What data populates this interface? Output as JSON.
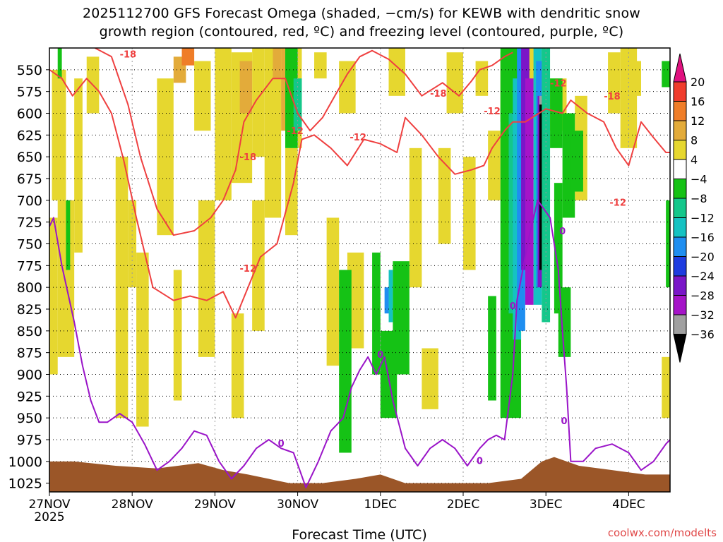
{
  "title_line1": "2025112700 GFS Forecast Omega (shaded, −cm/s) for KEWB with dendritic snow",
  "title_line2": "growth region (contoured, red, ºC) and freezing level (contoured, purple, ºC)",
  "watermark": "coolwx.com/modelts",
  "chart_data": {
    "type": "heatmap",
    "title": "2025112700 GFS Forecast Omega (shaded, −cm/s) for KEWB with dendritic snow growth region (contoured, red, ºC) and freezing level (contoured, purple, ºC)",
    "xlabel": "Forecast Time (UTC)",
    "ylabel": "",
    "x_ticks": [
      "27NOV",
      "28NOV",
      "29NOV",
      "30NOV",
      "1DEC",
      "2DEC",
      "3DEC",
      "4DEC"
    ],
    "x_tick_sublabel": "2025",
    "x_range_days": [
      0,
      7.5
    ],
    "y_ticks": [
      550,
      575,
      600,
      625,
      650,
      675,
      700,
      725,
      750,
      775,
      800,
      825,
      850,
      875,
      900,
      925,
      950,
      975,
      1000,
      1025
    ],
    "y_range_hpa": [
      525,
      1035
    ],
    "grid": "dotted",
    "colorbar_labels": [
      20,
      16,
      12,
      8,
      4,
      -4,
      -8,
      -12,
      -16,
      -20,
      -24,
      -28,
      -32,
      -36
    ],
    "colorbar_colors": [
      "#e0117f",
      "#f03c2c",
      "#ef7d28",
      "#e3ab3a",
      "#e6d72f",
      "#ffffff",
      "#15c215",
      "#14c78b",
      "#15c2c2",
      "#1f8ef0",
      "#1e3ce0",
      "#7a16c8",
      "#a514c8",
      "#a0a0a0",
      "#000000"
    ],
    "colors": {
      "dgz_contour": "#ef4040",
      "freezing_contour": "#9a14c8",
      "terrain": "#9b5628"
    },
    "contour_labels_dgz": [
      "-18",
      "-18",
      "-18",
      "-18",
      "-12",
      "-12",
      "-12",
      "-12",
      "-12",
      "-12"
    ],
    "contour_labels_freezing": [
      "0",
      "0",
      "0",
      "0",
      "0",
      "0"
    ],
    "dgz_minus12": [
      [
        0,
        550
      ],
      [
        0.15,
        560
      ],
      [
        0.28,
        580
      ],
      [
        0.45,
        560
      ],
      [
        0.6,
        575
      ],
      [
        0.75,
        600
      ],
      [
        0.9,
        655
      ],
      [
        1.05,
        720
      ],
      [
        1.25,
        800
      ],
      [
        1.5,
        815
      ],
      [
        1.7,
        810
      ],
      [
        1.9,
        815
      ],
      [
        2.1,
        805
      ],
      [
        2.25,
        835
      ],
      [
        2.4,
        800
      ],
      [
        2.55,
        765
      ],
      [
        2.75,
        750
      ],
      [
        2.95,
        680
      ],
      [
        3.05,
        630
      ],
      [
        3.2,
        625
      ],
      [
        3.4,
        640
      ],
      [
        3.6,
        660
      ],
      [
        3.8,
        630
      ],
      [
        4.0,
        635
      ],
      [
        4.2,
        645
      ],
      [
        4.3,
        605
      ],
      [
        4.5,
        625
      ],
      [
        4.7,
        650
      ],
      [
        4.9,
        670
      ],
      [
        5.1,
        665
      ],
      [
        5.25,
        660
      ],
      [
        5.35,
        640
      ],
      [
        5.5,
        620
      ],
      [
        5.6,
        610
      ],
      [
        5.75,
        610
      ],
      [
        6.0,
        595
      ],
      [
        6.2,
        600
      ],
      [
        6.3,
        585
      ],
      [
        6.5,
        600
      ],
      [
        6.7,
        610
      ],
      [
        6.85,
        640
      ],
      [
        7.0,
        660
      ],
      [
        7.15,
        610
      ],
      [
        7.3,
        628
      ],
      [
        7.45,
        645
      ],
      [
        7.5,
        645
      ]
    ],
    "dgz_minus18": [
      [
        0.55,
        525
      ],
      [
        0.75,
        535
      ],
      [
        0.95,
        590
      ],
      [
        1.1,
        650
      ],
      [
        1.3,
        710
      ],
      [
        1.5,
        740
      ],
      [
        1.75,
        735
      ],
      [
        1.95,
        720
      ],
      [
        2.1,
        700
      ],
      [
        2.25,
        665
      ],
      [
        2.35,
        610
      ],
      [
        2.5,
        585
      ],
      [
        2.7,
        560
      ],
      [
        2.85,
        560
      ],
      [
        3.0,
        600
      ],
      [
        3.15,
        620
      ],
      [
        3.3,
        605
      ],
      [
        3.45,
        580
      ],
      [
        3.6,
        555
      ],
      [
        3.75,
        535
      ],
      [
        3.9,
        528
      ],
      [
        4.1,
        538
      ],
      [
        4.3,
        555
      ],
      [
        4.5,
        580
      ],
      [
        4.75,
        565
      ],
      [
        4.95,
        580
      ],
      [
        5.1,
        563
      ],
      [
        5.2,
        550
      ],
      [
        5.35,
        545
      ],
      [
        5.5,
        535
      ],
      [
        5.6,
        530
      ]
    ],
    "freezing_0": [
      [
        0,
        730
      ],
      [
        0.05,
        720
      ],
      [
        0.15,
        775
      ],
      [
        0.3,
        840
      ],
      [
        0.4,
        890
      ],
      [
        0.5,
        930
      ],
      [
        0.6,
        955
      ],
      [
        0.7,
        955
      ],
      [
        0.85,
        945
      ],
      [
        1.0,
        955
      ],
      [
        1.15,
        980
      ],
      [
        1.3,
        1010
      ],
      [
        1.45,
        1000
      ],
      [
        1.6,
        985
      ],
      [
        1.75,
        965
      ],
      [
        1.9,
        970
      ],
      [
        2.05,
        1000
      ],
      [
        2.2,
        1020
      ],
      [
        2.35,
        1005
      ],
      [
        2.5,
        985
      ],
      [
        2.65,
        975
      ],
      [
        2.8,
        985
      ],
      [
        2.95,
        990
      ],
      [
        3.1,
        1030
      ],
      [
        3.25,
        1000
      ],
      [
        3.4,
        965
      ],
      [
        3.55,
        950
      ],
      [
        3.65,
        915
      ],
      [
        3.75,
        895
      ],
      [
        3.85,
        880
      ],
      [
        3.95,
        900
      ],
      [
        4.05,
        880
      ],
      [
        4.15,
        930
      ],
      [
        4.3,
        985
      ],
      [
        4.45,
        1005
      ],
      [
        4.6,
        985
      ],
      [
        4.75,
        975
      ],
      [
        4.9,
        985
      ],
      [
        5.05,
        1005
      ],
      [
        5.2,
        985
      ],
      [
        5.3,
        975
      ],
      [
        5.4,
        970
      ],
      [
        5.5,
        975
      ],
      [
        5.6,
        900
      ],
      [
        5.65,
        815
      ],
      [
        5.8,
        740
      ],
      [
        5.9,
        700
      ],
      [
        6.05,
        720
      ],
      [
        6.15,
        780
      ],
      [
        6.2,
        850
      ],
      [
        6.25,
        915
      ],
      [
        6.3,
        1000
      ],
      [
        6.45,
        1000
      ],
      [
        6.6,
        985
      ],
      [
        6.8,
        980
      ],
      [
        7.0,
        990
      ],
      [
        7.15,
        1010
      ],
      [
        7.3,
        1000
      ],
      [
        7.45,
        980
      ],
      [
        7.5,
        975
      ]
    ],
    "terrain_top": [
      [
        0,
        1000
      ],
      [
        0.3,
        1000
      ],
      [
        0.8,
        1005
      ],
      [
        1.3,
        1008
      ],
      [
        1.8,
        1002
      ],
      [
        2.1,
        1010
      ],
      [
        2.4,
        1015
      ],
      [
        2.9,
        1025
      ],
      [
        3.3,
        1025
      ],
      [
        3.7,
        1020
      ],
      [
        4.0,
        1015
      ],
      [
        4.3,
        1025
      ],
      [
        4.8,
        1025
      ],
      [
        5.3,
        1025
      ],
      [
        5.7,
        1020
      ],
      [
        5.95,
        1000
      ],
      [
        6.1,
        995
      ],
      [
        6.4,
        1005
      ],
      [
        6.8,
        1010
      ],
      [
        7.2,
        1015
      ],
      [
        7.5,
        1015
      ]
    ],
    "omega_cells": [
      {
        "t0": 0.03,
        "t1": 0.2,
        "p0": 550,
        "p1": 700,
        "v": 6
      },
      {
        "t0": 0.0,
        "t1": 0.1,
        "p0": 720,
        "p1": 900,
        "v": 6
      },
      {
        "t0": 0.1,
        "t1": 0.3,
        "p0": 700,
        "p1": 880,
        "v": 6
      },
      {
        "t0": 0.3,
        "t1": 0.4,
        "p0": 560,
        "p1": 760,
        "v": 6
      },
      {
        "t0": 0.45,
        "t1": 0.6,
        "p0": 535,
        "p1": 600,
        "v": 6
      },
      {
        "t0": 0.8,
        "t1": 0.95,
        "p0": 650,
        "p1": 950,
        "v": 6
      },
      {
        "t0": 0.95,
        "t1": 1.05,
        "p0": 700,
        "p1": 800,
        "v": 6
      },
      {
        "t0": 1.05,
        "t1": 1.2,
        "p0": 760,
        "p1": 960,
        "v": 6
      },
      {
        "t0": 1.3,
        "t1": 1.5,
        "p0": 560,
        "p1": 740,
        "v": 6
      },
      {
        "t0": 1.5,
        "t1": 1.6,
        "p0": 780,
        "p1": 930,
        "v": 6
      },
      {
        "t0": 1.75,
        "t1": 1.95,
        "p0": 540,
        "p1": 620,
        "v": 6
      },
      {
        "t0": 1.8,
        "t1": 2.0,
        "p0": 700,
        "p1": 880,
        "v": 6
      },
      {
        "t0": 2.0,
        "t1": 2.2,
        "p0": 525,
        "p1": 700,
        "v": 6
      },
      {
        "t0": 2.2,
        "t1": 2.45,
        "p0": 530,
        "p1": 680,
        "v": 6
      },
      {
        "t0": 2.3,
        "t1": 2.45,
        "p0": 540,
        "p1": 600,
        "v": 10
      },
      {
        "t0": 2.45,
        "t1": 2.6,
        "p0": 525,
        "p1": 650,
        "v": 6
      },
      {
        "t0": 2.2,
        "t1": 2.35,
        "p0": 830,
        "p1": 950,
        "v": 6
      },
      {
        "t0": 2.45,
        "t1": 2.6,
        "p0": 700,
        "p1": 850,
        "v": 6
      },
      {
        "t0": 2.6,
        "t1": 2.8,
        "p0": 525,
        "p1": 720,
        "v": 6
      },
      {
        "t0": 2.7,
        "t1": 2.8,
        "p0": 525,
        "p1": 560,
        "v": 10
      },
      {
        "t0": 2.8,
        "t1": 3.0,
        "p0": 525,
        "p1": 600,
        "v": 6
      },
      {
        "t0": 2.8,
        "t1": 2.9,
        "p0": 525,
        "p1": 620,
        "v": 10
      },
      {
        "t0": 2.9,
        "t1": 3.05,
        "p0": 525,
        "p1": 640,
        "v": 6
      },
      {
        "t0": 2.85,
        "t1": 3.0,
        "p0": 640,
        "p1": 740,
        "v": 6
      },
      {
        "t0": 3.2,
        "t1": 3.35,
        "p0": 530,
        "p1": 560,
        "v": 6
      },
      {
        "t0": 3.5,
        "t1": 3.7,
        "p0": 540,
        "p1": 600,
        "v": 6
      },
      {
        "t0": 3.35,
        "t1": 3.5,
        "p0": 720,
        "p1": 890,
        "v": 6
      },
      {
        "t0": 3.6,
        "t1": 3.8,
        "p0": 760,
        "p1": 870,
        "v": 6
      },
      {
        "t0": 4.1,
        "t1": 4.3,
        "p0": 525,
        "p1": 580,
        "v": 6
      },
      {
        "t0": 4.35,
        "t1": 4.5,
        "p0": 640,
        "p1": 800,
        "v": 6
      },
      {
        "t0": 4.5,
        "t1": 4.7,
        "p0": 870,
        "p1": 940,
        "v": 6
      },
      {
        "t0": 4.7,
        "t1": 4.85,
        "p0": 640,
        "p1": 750,
        "v": 6
      },
      {
        "t0": 4.8,
        "t1": 5.0,
        "p0": 530,
        "p1": 600,
        "v": 6
      },
      {
        "t0": 5.0,
        "t1": 5.15,
        "p0": 650,
        "p1": 780,
        "v": 6
      },
      {
        "t0": 5.15,
        "t1": 5.3,
        "p0": 540,
        "p1": 580,
        "v": 6
      },
      {
        "t0": 5.3,
        "t1": 5.45,
        "p0": 620,
        "p1": 700,
        "v": 6
      },
      {
        "t0": 5.45,
        "t1": 5.6,
        "p0": 530,
        "p1": 610,
        "v": 6
      },
      {
        "t0": 5.55,
        "t1": 5.75,
        "p0": 530,
        "p1": 580,
        "v": 6
      },
      {
        "t0": 5.75,
        "t1": 6.0,
        "p0": 525,
        "p1": 580,
        "v": 6
      },
      {
        "t0": 5.7,
        "t1": 5.8,
        "p0": 600,
        "p1": 720,
        "v": 6
      },
      {
        "t0": 6.05,
        "t1": 6.25,
        "p0": 560,
        "p1": 620,
        "v": 6
      },
      {
        "t0": 6.35,
        "t1": 6.5,
        "p0": 580,
        "p1": 700,
        "v": 6
      },
      {
        "t0": 6.75,
        "t1": 6.9,
        "p0": 530,
        "p1": 600,
        "v": 6
      },
      {
        "t0": 6.9,
        "t1": 7.1,
        "p0": 525,
        "p1": 640,
        "v": 6
      },
      {
        "t0": 7.05,
        "t1": 7.15,
        "p0": 540,
        "p1": 580,
        "v": 6
      },
      {
        "t0": 7.4,
        "t1": 7.5,
        "p0": 880,
        "p1": 950,
        "v": 6
      },
      {
        "t0": 1.5,
        "t1": 1.65,
        "p0": 535,
        "p1": 565,
        "v": 10
      },
      {
        "t0": 1.6,
        "t1": 1.75,
        "p0": 525,
        "p1": 545,
        "v": 14
      },
      {
        "t0": 0.1,
        "t1": 0.15,
        "p0": 525,
        "p1": 560,
        "v": -6
      },
      {
        "t0": 0.2,
        "t1": 0.25,
        "p0": 700,
        "p1": 780,
        "v": -6
      },
      {
        "t0": 2.85,
        "t1": 3.0,
        "p0": 525,
        "p1": 640,
        "v": -6
      },
      {
        "t0": 2.95,
        "t1": 3.05,
        "p0": 560,
        "p1": 620,
        "v": -10
      },
      {
        "t0": 3.5,
        "t1": 3.65,
        "p0": 780,
        "p1": 990,
        "v": -6
      },
      {
        "t0": 3.9,
        "t1": 4.0,
        "p0": 760,
        "p1": 900,
        "v": -6
      },
      {
        "t0": 4.0,
        "t1": 4.2,
        "p0": 850,
        "p1": 950,
        "v": -6
      },
      {
        "t0": 4.15,
        "t1": 4.35,
        "p0": 770,
        "p1": 900,
        "v": -6
      },
      {
        "t0": 4.1,
        "t1": 4.15,
        "p0": 780,
        "p1": 840,
        "v": -14
      },
      {
        "t0": 4.05,
        "t1": 4.1,
        "p0": 800,
        "p1": 830,
        "v": -18
      },
      {
        "t0": 5.3,
        "t1": 5.4,
        "p0": 810,
        "p1": 930,
        "v": -6
      },
      {
        "t0": 5.45,
        "t1": 5.7,
        "p0": 525,
        "p1": 950,
        "v": -6
      },
      {
        "t0": 5.55,
        "t1": 5.65,
        "p0": 600,
        "p1": 830,
        "v": -10
      },
      {
        "t0": 5.6,
        "t1": 5.7,
        "p0": 560,
        "p1": 860,
        "v": -14
      },
      {
        "t0": 5.65,
        "t1": 5.75,
        "p0": 525,
        "p1": 850,
        "v": -18
      },
      {
        "t0": 5.7,
        "t1": 5.8,
        "p0": 525,
        "p1": 780,
        "v": -26
      },
      {
        "t0": 5.75,
        "t1": 5.85,
        "p0": 560,
        "p1": 820,
        "v": -30
      },
      {
        "t0": 5.85,
        "t1": 5.95,
        "p0": 525,
        "p1": 820,
        "v": -14
      },
      {
        "t0": 5.88,
        "t1": 5.95,
        "p0": 540,
        "p1": 800,
        "v": -18
      },
      {
        "t0": 5.9,
        "t1": 5.96,
        "p0": 580,
        "p1": 800,
        "v": -26
      },
      {
        "t0": 5.92,
        "t1": 5.96,
        "p0": 580,
        "p1": 600,
        "v": -34
      },
      {
        "t0": 5.92,
        "t1": 5.97,
        "p0": 590,
        "p1": 780,
        "v": -40
      },
      {
        "t0": 5.95,
        "t1": 6.05,
        "p0": 525,
        "p1": 840,
        "v": -10
      },
      {
        "t0": 6.05,
        "t1": 6.2,
        "p0": 560,
        "p1": 640,
        "v": -6
      },
      {
        "t0": 6.1,
        "t1": 6.2,
        "p0": 680,
        "p1": 830,
        "v": -6
      },
      {
        "t0": 6.15,
        "t1": 6.3,
        "p0": 800,
        "p1": 880,
        "v": -6
      },
      {
        "t0": 6.2,
        "t1": 6.35,
        "p0": 600,
        "p1": 720,
        "v": -6
      },
      {
        "t0": 6.3,
        "t1": 6.45,
        "p0": 620,
        "p1": 690,
        "v": -6
      },
      {
        "t0": 7.4,
        "t1": 7.5,
        "p0": 540,
        "p1": 570,
        "v": -6
      },
      {
        "t0": 7.45,
        "t1": 7.5,
        "p0": 700,
        "p1": 800,
        "v": -6
      }
    ]
  }
}
